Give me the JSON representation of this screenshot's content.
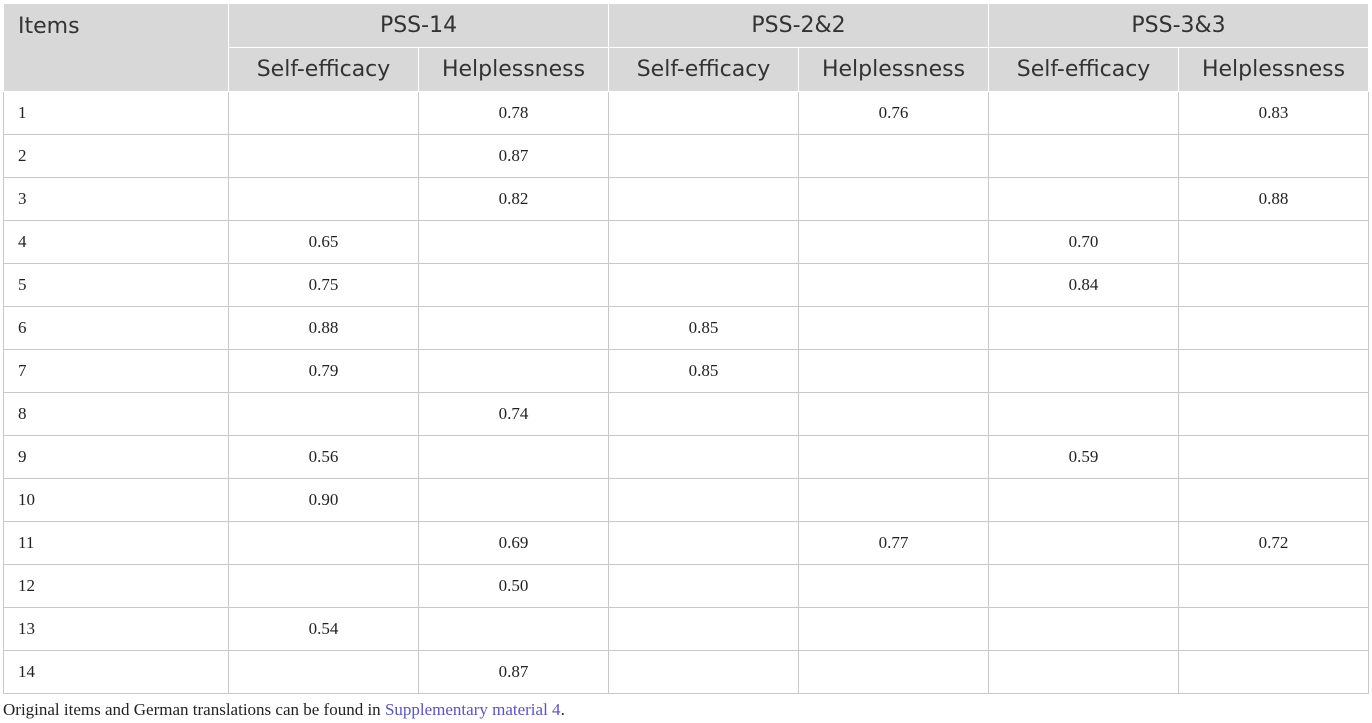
{
  "table": {
    "header": {
      "items_label": "Items",
      "groups": [
        "PSS-14",
        "PSS-2&2",
        "PSS-3&3"
      ],
      "subheaders": [
        "Self-efficacy",
        "Helplessness",
        "Self-efficacy",
        "Helplessness",
        "Self-efficacy",
        "Helplessness"
      ]
    },
    "rows": [
      {
        "item": "1",
        "values": [
          "",
          "0.78",
          "",
          "0.76",
          "",
          "0.83"
        ]
      },
      {
        "item": "2",
        "values": [
          "",
          "0.87",
          "",
          "",
          "",
          ""
        ]
      },
      {
        "item": "3",
        "values": [
          "",
          "0.82",
          "",
          "",
          "",
          "0.88"
        ]
      },
      {
        "item": "4",
        "values": [
          "0.65",
          "",
          "",
          "",
          "0.70",
          ""
        ]
      },
      {
        "item": "5",
        "values": [
          "0.75",
          "",
          "",
          "",
          "0.84",
          ""
        ]
      },
      {
        "item": "6",
        "values": [
          "0.88",
          "",
          "0.85",
          "",
          "",
          ""
        ]
      },
      {
        "item": "7",
        "values": [
          "0.79",
          "",
          "0.85",
          "",
          "",
          ""
        ]
      },
      {
        "item": "8",
        "values": [
          "",
          "0.74",
          "",
          "",
          "",
          ""
        ]
      },
      {
        "item": "9",
        "values": [
          "0.56",
          "",
          "",
          "",
          "0.59",
          ""
        ]
      },
      {
        "item": "10",
        "values": [
          "0.90",
          "",
          "",
          "",
          "",
          ""
        ]
      },
      {
        "item": "11",
        "values": [
          "",
          "0.69",
          "",
          "0.77",
          "",
          "0.72"
        ]
      },
      {
        "item": "12",
        "values": [
          "",
          "0.50",
          "",
          "",
          "",
          ""
        ]
      },
      {
        "item": "13",
        "values": [
          "0.54",
          "",
          "",
          "",
          "",
          ""
        ]
      },
      {
        "item": "14",
        "values": [
          "",
          "0.87",
          "",
          "",
          "",
          ""
        ]
      }
    ]
  },
  "footnote": {
    "text": "Original items and German translations can be found in ",
    "link": "Supplementary material 4",
    "end": "."
  },
  "colors": {
    "header_bg": "#d8d8d8",
    "grid": "#c8c8c8",
    "link": "#5a52c8"
  }
}
